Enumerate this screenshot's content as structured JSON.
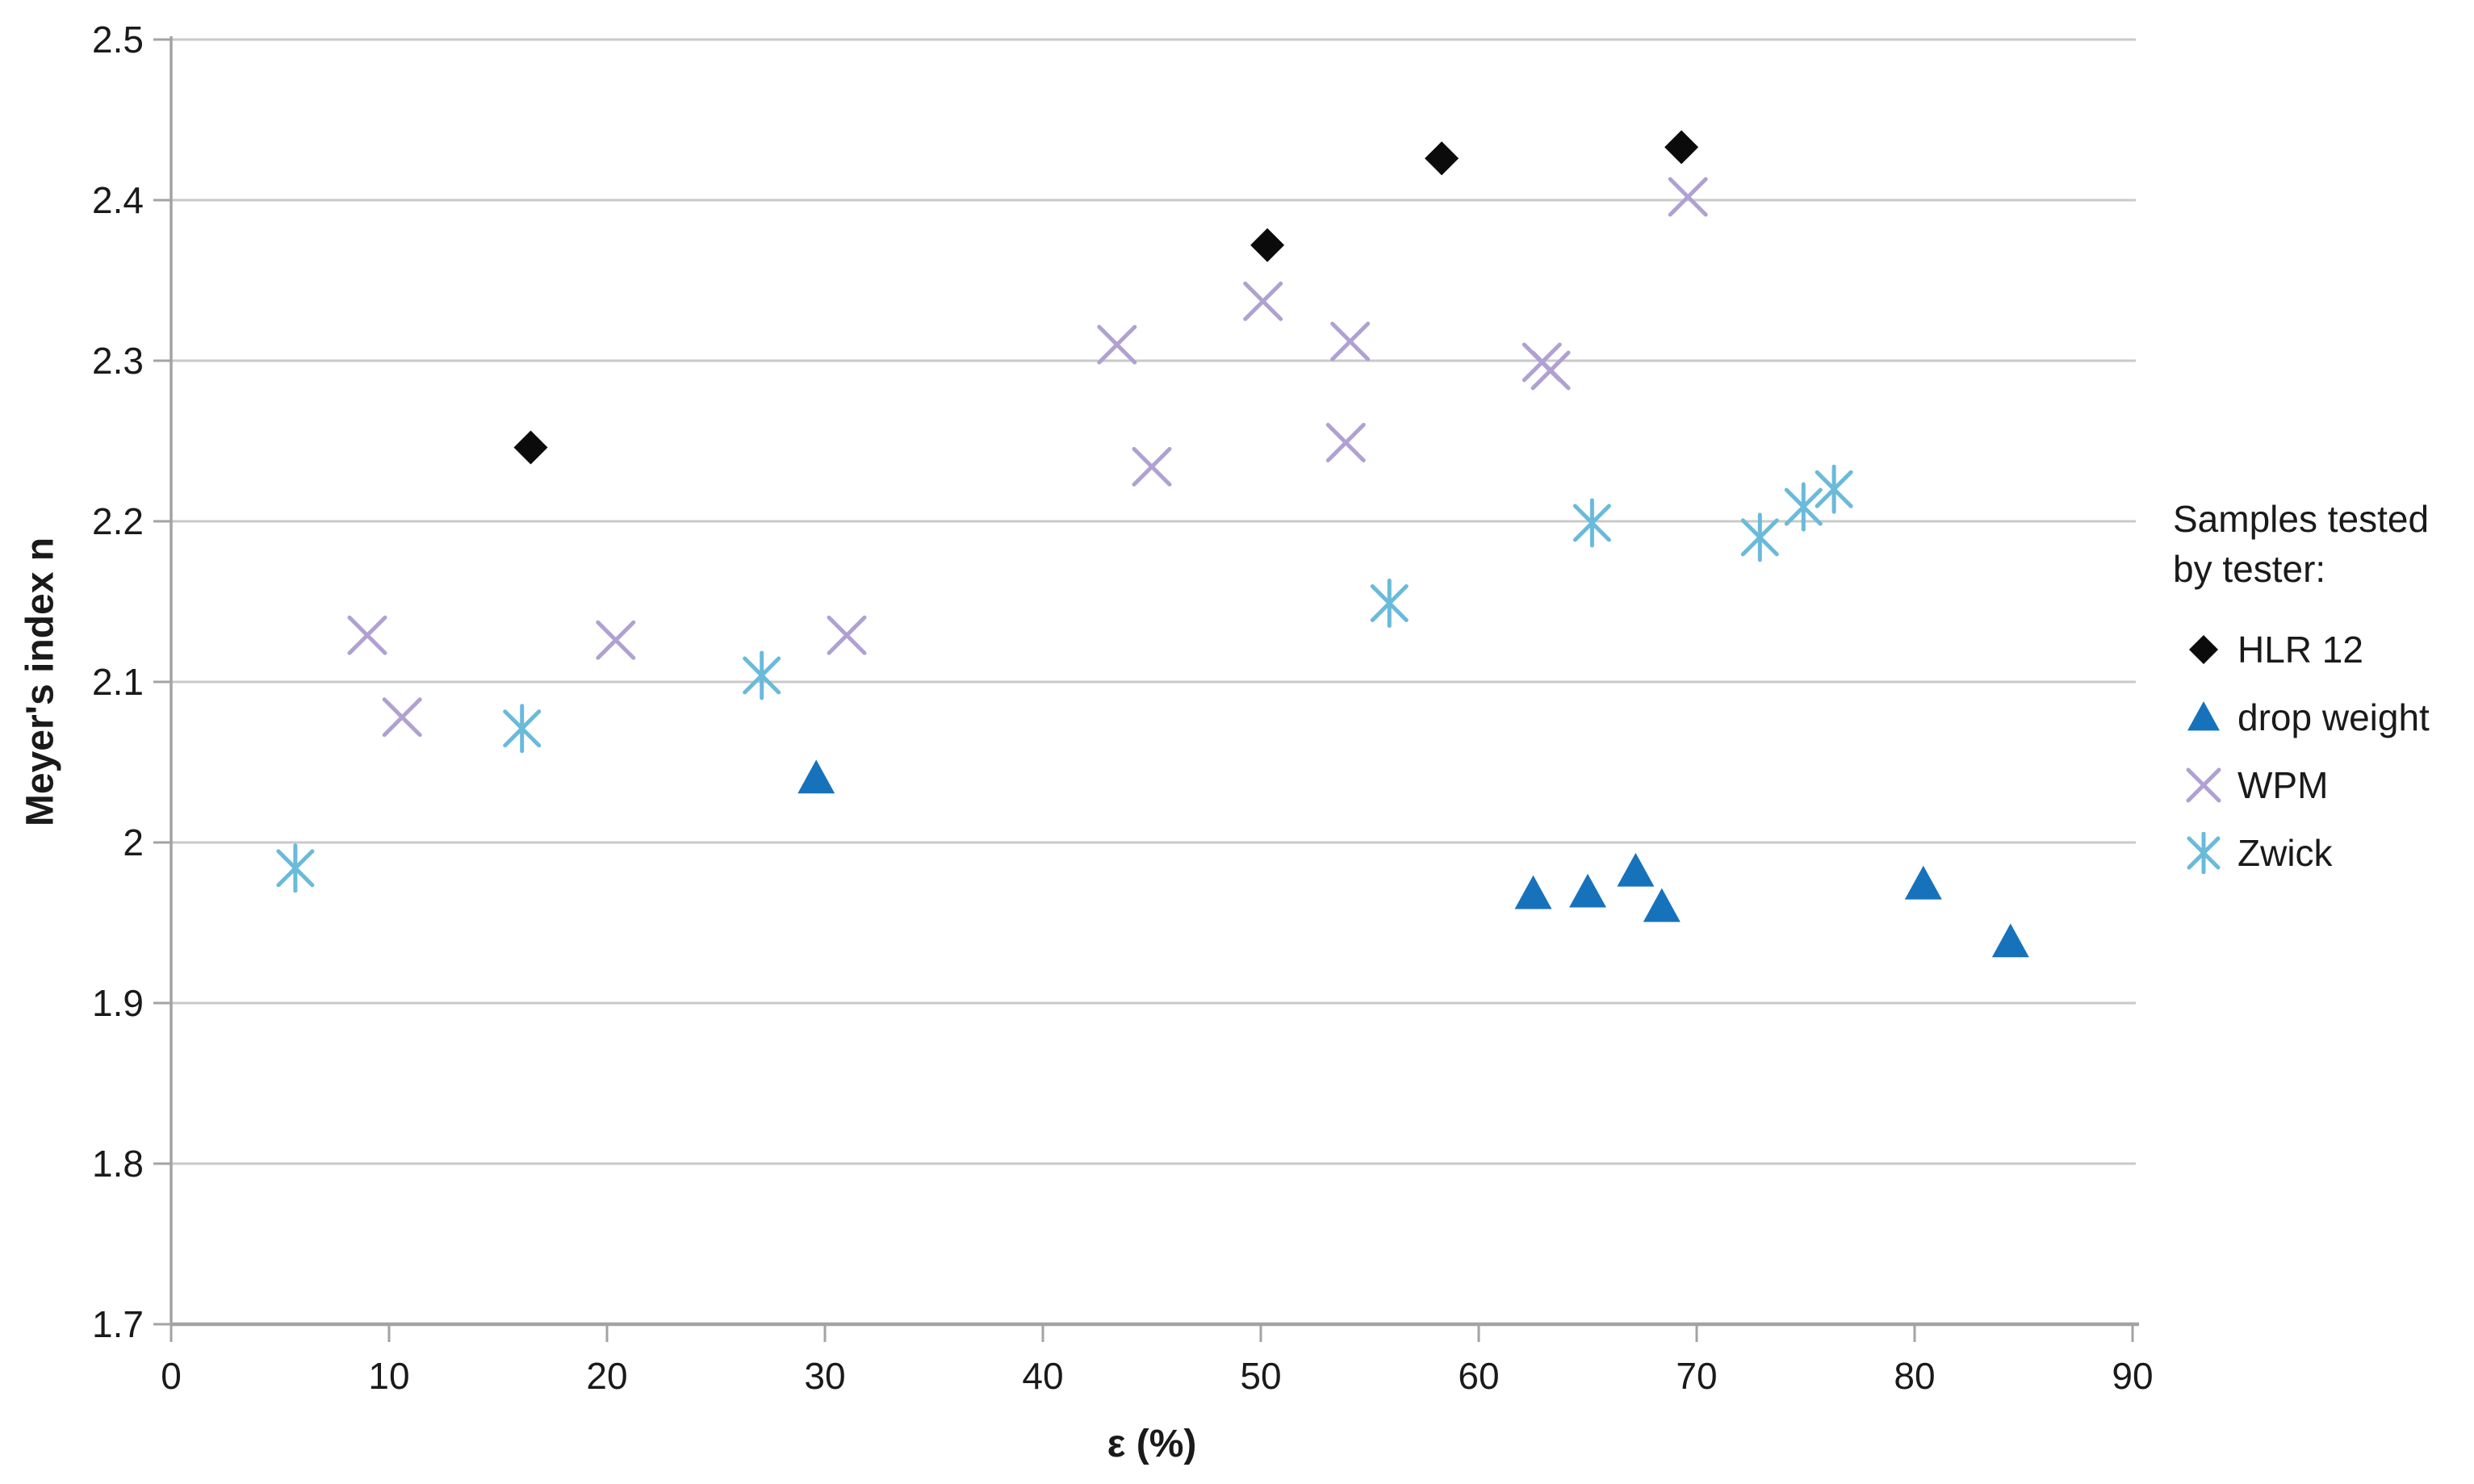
{
  "chart_data": {
    "type": "scatter",
    "title": "",
    "xlabel": "ε (%)",
    "ylabel": "Meyer's index n",
    "xlim": [
      0,
      90
    ],
    "ylim": [
      1.7,
      2.5
    ],
    "xticks": [
      0,
      10,
      20,
      30,
      40,
      50,
      60,
      70,
      80,
      90
    ],
    "yticks": [
      {
        "v": 2.5,
        "label": "2.5"
      },
      {
        "v": 2.4,
        "label": "2.4"
      },
      {
        "v": 2.3,
        "label": "2.3"
      },
      {
        "v": 2.2,
        "label": "2.2"
      },
      {
        "v": 2.1,
        "label": "2.1"
      },
      {
        "v": 2.0,
        "label": "2"
      },
      {
        "v": 1.9,
        "label": "1.9"
      },
      {
        "v": 1.8,
        "label": "1.8"
      },
      {
        "v": 1.7,
        "label": "1.7"
      }
    ],
    "grid": "horizontal",
    "legend": {
      "position": "right",
      "title_lines": [
        "Samples tested",
        "by tester:"
      ]
    },
    "series": [
      {
        "name": "HLR 12",
        "marker": "diamond",
        "color": "#0b0b0b",
        "points": [
          [
            16.5,
            2.246
          ],
          [
            50.3,
            2.372
          ],
          [
            58.3,
            2.426
          ],
          [
            69.3,
            2.433
          ]
        ]
      },
      {
        "name": "drop weight",
        "marker": "triangle",
        "color": "#1772bc",
        "points": [
          [
            29.6,
            2.04
          ],
          [
            62.5,
            1.968
          ],
          [
            65.0,
            1.969
          ],
          [
            67.2,
            1.982
          ],
          [
            68.4,
            1.96
          ],
          [
            80.4,
            1.974
          ],
          [
            84.4,
            1.938
          ]
        ]
      },
      {
        "name": "WPM",
        "marker": "x",
        "color": "#b0a1d2",
        "points": [
          [
            9.0,
            2.129
          ],
          [
            10.6,
            2.078
          ],
          [
            20.4,
            2.126
          ],
          [
            31.0,
            2.129
          ],
          [
            43.4,
            2.31
          ],
          [
            45.0,
            2.234
          ],
          [
            50.1,
            2.337
          ],
          [
            53.9,
            2.249
          ],
          [
            54.1,
            2.312
          ],
          [
            62.9,
            2.299
          ],
          [
            63.3,
            2.294
          ],
          [
            69.6,
            2.402
          ]
        ]
      },
      {
        "name": "Zwick",
        "marker": "star6",
        "color": "#6abada",
        "points": [
          [
            5.7,
            1.984
          ],
          [
            16.1,
            2.071
          ],
          [
            27.1,
            2.104
          ],
          [
            55.9,
            2.149
          ],
          [
            65.2,
            2.199
          ],
          [
            72.9,
            2.19
          ],
          [
            74.9,
            2.209
          ],
          [
            76.3,
            2.22
          ]
        ]
      }
    ]
  },
  "colors": {
    "background": "#ffffff",
    "gridline": "#c9c9c9",
    "axis": "#a3a3a3",
    "tick_text": "#1a1a1a"
  }
}
